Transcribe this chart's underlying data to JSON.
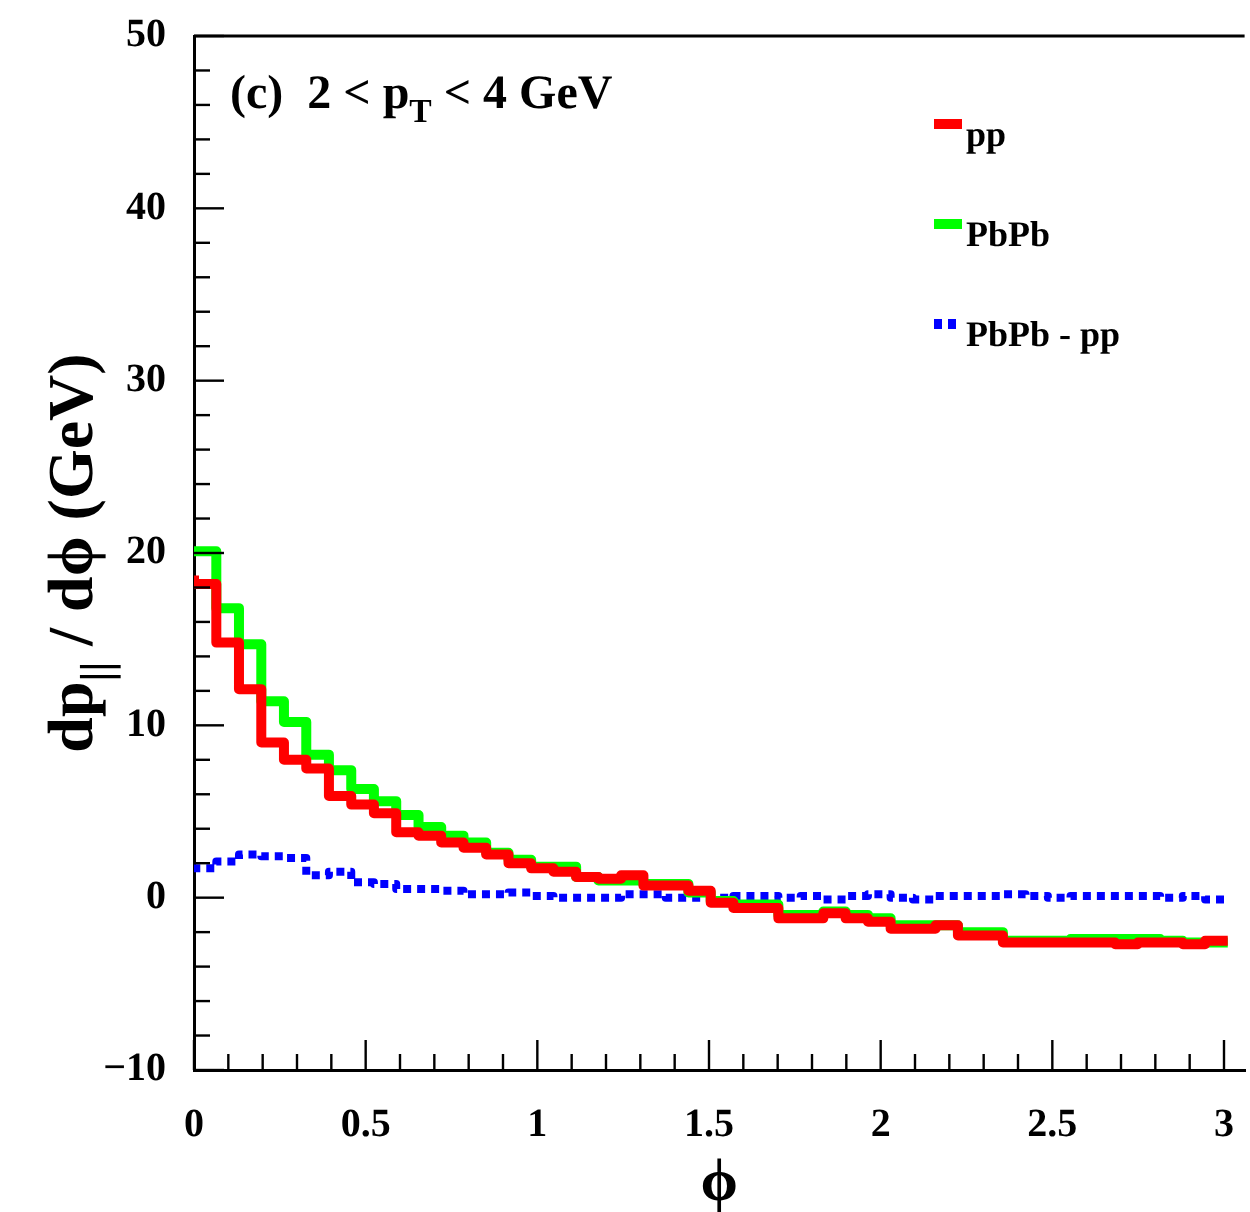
{
  "chart_data": {
    "type": "step",
    "xlabel": "ϕ",
    "ylabel": "dp$_{||}$ / dϕ (GeV)",
    "annotations": [
      "(c)  2 < p$_{T}$ < 4 GeV"
    ],
    "x": [
      0,
      0.065,
      0.131,
      0.196,
      0.262,
      0.327,
      0.393,
      0.458,
      0.524,
      0.589,
      0.654,
      0.72,
      0.785,
      0.851,
      0.916,
      0.982,
      1.047,
      1.113,
      1.178,
      1.244,
      1.309,
      1.374,
      1.44,
      1.505,
      1.571,
      1.636,
      1.702,
      1.767,
      1.833,
      1.898,
      1.963,
      2.029,
      2.094,
      2.16,
      2.225,
      2.291,
      2.356,
      2.422,
      2.487,
      2.553,
      2.618,
      2.683,
      2.749,
      2.814,
      2.88,
      2.945,
      3.011
    ],
    "series": [
      {
        "name": "pp",
        "color": "#ff0000",
        "values": [
          18.7,
          18.2,
          14.8,
          12.1,
          9.0,
          8.0,
          7.5,
          5.9,
          5.4,
          4.9,
          3.8,
          3.6,
          3.2,
          2.9,
          2.5,
          2.0,
          1.7,
          1.5,
          1.2,
          1.1,
          1.3,
          0.7,
          0.7,
          0.4,
          -0.3,
          -0.6,
          -0.6,
          -1.2,
          -1.2,
          -0.9,
          -1.2,
          -1.4,
          -1.8,
          -1.8,
          -1.6,
          -2.2,
          -2.2,
          -2.6,
          -2.6,
          -2.6,
          -2.6,
          -2.6,
          -2.7,
          -2.6,
          -2.6,
          -2.7,
          -2.5
        ]
      },
      {
        "name": "PbPb",
        "color": "#00ff00",
        "values": [
          20.3,
          20.1,
          16.8,
          14.7,
          11.4,
          10.2,
          8.3,
          7.4,
          6.3,
          5.6,
          4.8,
          4.1,
          3.6,
          3.2,
          2.6,
          2.2,
          1.8,
          1.8,
          1.2,
          1.0,
          1.0,
          0.8,
          0.8,
          0.3,
          -0.2,
          -0.4,
          -0.4,
          -1.0,
          -1.0,
          -0.8,
          -1.0,
          -1.2,
          -1.6,
          -1.6,
          -1.6,
          -2.0,
          -2.0,
          -2.5,
          -2.5,
          -2.5,
          -2.4,
          -2.4,
          -2.4,
          -2.4,
          -2.5,
          -2.6,
          -2.6
        ]
      },
      {
        "name": "PbPb - pp",
        "color": "#0000ff",
        "line_style": "dotted",
        "values": [
          1.6,
          1.7,
          2.1,
          2.5,
          2.4,
          2.3,
          1.3,
          1.5,
          0.9,
          0.8,
          0.5,
          0.5,
          0.4,
          0.2,
          0.2,
          0.3,
          0.1,
          0.0,
          0.0,
          0.0,
          0.2,
          0.2,
          0.0,
          0.0,
          0.0,
          0.1,
          0.1,
          0.0,
          0.1,
          -0.1,
          0.1,
          0.2,
          0.0,
          -0.1,
          0.1,
          0.1,
          0.1,
          0.2,
          0.1,
          0.0,
          0.1,
          0.1,
          0.1,
          0.1,
          0.0,
          0.1,
          -0.1
        ]
      }
    ],
    "xlim": [
      0,
      3.06
    ],
    "xticks": [
      0,
      {
        "value": 0.1,
        "label": null
      },
      {
        "value": 0.2,
        "label": null
      },
      {
        "value": 0.3,
        "label": null
      },
      {
        "value": 0.4,
        "label": null
      },
      0.5,
      {
        "value": 0.6,
        "label": null
      },
      {
        "value": 0.7,
        "label": null
      },
      {
        "value": 0.8,
        "label": null
      },
      {
        "value": 0.9,
        "label": null
      },
      1,
      {
        "value": 1.1,
        "label": null
      },
      {
        "value": 1.2,
        "label": null
      },
      {
        "value": 1.3,
        "label": null
      },
      {
        "value": 1.4,
        "label": null
      },
      1.5,
      {
        "value": 1.6,
        "label": null
      },
      {
        "value": 1.7,
        "label": null
      },
      {
        "value": 1.8,
        "label": null
      },
      {
        "value": 1.9,
        "label": null
      },
      2,
      {
        "value": 2.1,
        "label": null
      },
      {
        "value": 2.2,
        "label": null
      },
      {
        "value": 2.3,
        "label": null
      },
      {
        "value": 2.4,
        "label": null
      },
      2.5,
      {
        "value": 2.6,
        "label": null
      },
      {
        "value": 2.7,
        "label": null
      },
      {
        "value": 2.8,
        "label": null
      },
      {
        "value": 2.9,
        "label": null
      },
      3
    ],
    "ylim": [
      -10,
      50
    ],
    "yticks": [
      {
        "value": -10,
        "label": "−10"
      },
      {
        "value": -8,
        "label": null
      },
      {
        "value": -6,
        "label": null
      },
      {
        "value": -4,
        "label": null
      },
      {
        "value": -2,
        "label": null
      },
      0,
      {
        "value": 2,
        "label": null
      },
      {
        "value": 4,
        "label": null
      },
      {
        "value": 6,
        "label": null
      },
      {
        "value": 8,
        "label": null
      },
      10,
      {
        "value": 12,
        "label": null
      },
      {
        "value": 14,
        "label": null
      },
      {
        "value": 16,
        "label": null
      },
      {
        "value": 18,
        "label": null
      },
      20,
      {
        "value": 22,
        "label": null
      },
      {
        "value": 24,
        "label": null
      },
      {
        "value": 26,
        "label": null
      },
      {
        "value": 28,
        "label": null
      },
      30,
      {
        "value": 32,
        "label": null
      },
      {
        "value": 34,
        "label": null
      },
      {
        "value": 36,
        "label": null
      },
      {
        "value": 38,
        "label": null
      },
      40,
      {
        "value": 42,
        "label": null
      },
      {
        "value": 44,
        "label": null
      },
      {
        "value": 46,
        "label": null
      },
      {
        "value": 48,
        "label": null
      },
      50
    ],
    "legend": "top right",
    "grid": false
  }
}
